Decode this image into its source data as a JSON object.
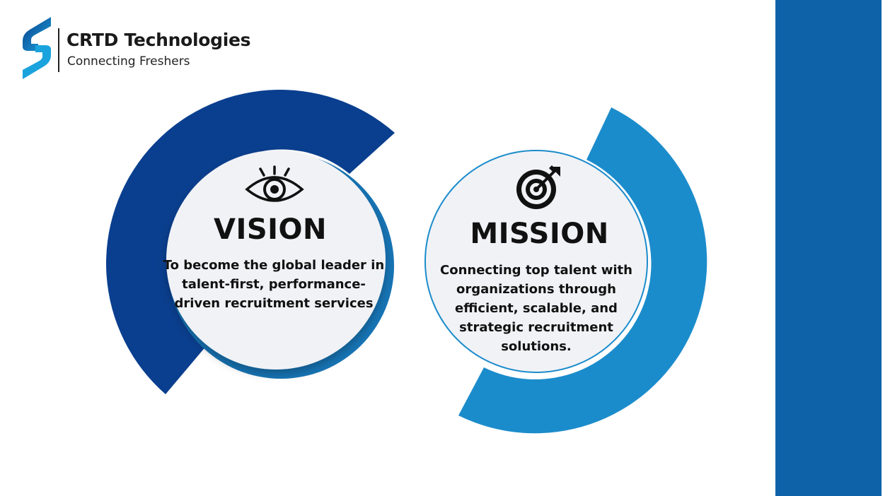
{
  "brand": {
    "name": "CRTD Technologies",
    "tagline": "Connecting Freshers"
  },
  "vision": {
    "icon": "eye-icon",
    "title": "VISION",
    "text": "To become the global leader in talent-first, performance-driven recruitment services"
  },
  "mission": {
    "icon": "target-icon",
    "title": "MISSION",
    "text": "Connecting top talent with organizations through efficient, scalable, and strategic recruitment solutions."
  },
  "colors": {
    "vision_arc": "#0a3f8f",
    "mission_arc": "#1b8ccb",
    "side_band": "#0e63a8",
    "circle_fill": "#f1f2f6"
  }
}
